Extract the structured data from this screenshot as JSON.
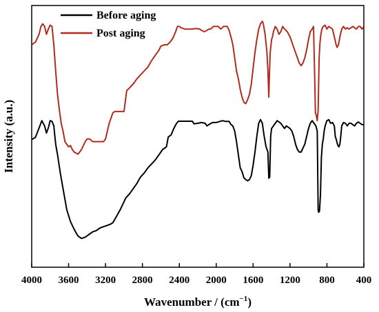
{
  "chart_data": {
    "type": "line",
    "xlabel": "Wavenumber / (cm",
    "xlabel_sup": "−1",
    "xlabel_close": ")",
    "ylabel": "Intensity (a.u.)",
    "xlim": [
      4000,
      400
    ],
    "x_reversed": true,
    "ylim": [
      0,
      100
    ],
    "xticks": [
      4000,
      3600,
      3200,
      2800,
      2400,
      2000,
      1600,
      1200,
      800,
      400
    ],
    "grid": false,
    "legend_position": "top-left",
    "series": [
      {
        "name": "Before aging",
        "color": "#000000",
        "points": [
          [
            4000,
            48.8
          ],
          [
            3960,
            49.6
          ],
          [
            3920,
            53.2
          ],
          [
            3890,
            56.0
          ],
          [
            3860,
            54.0
          ],
          [
            3840,
            51.3
          ],
          [
            3820,
            53.2
          ],
          [
            3800,
            56.0
          ],
          [
            3780,
            55.7
          ],
          [
            3760,
            54.0
          ],
          [
            3740,
            47.0
          ],
          [
            3720,
            43.0
          ],
          [
            3690,
            36.0
          ],
          [
            3660,
            30.0
          ],
          [
            3620,
            22.0
          ],
          [
            3580,
            17.5
          ],
          [
            3540,
            14.5
          ],
          [
            3500,
            12.0
          ],
          [
            3460,
            11.0
          ],
          [
            3420,
            11.5
          ],
          [
            3380,
            12.5
          ],
          [
            3340,
            13.5
          ],
          [
            3300,
            14.0
          ],
          [
            3260,
            15.0
          ],
          [
            3220,
            15.5
          ],
          [
            3180,
            16.0
          ],
          [
            3150,
            16.4
          ],
          [
            3120,
            17.0
          ],
          [
            3080,
            19.5
          ],
          [
            3040,
            22.0
          ],
          [
            3000,
            25.0
          ],
          [
            2980,
            26.5
          ],
          [
            2940,
            28.0
          ],
          [
            2900,
            30.0
          ],
          [
            2860,
            32.0
          ],
          [
            2820,
            34.5
          ],
          [
            2780,
            36.0
          ],
          [
            2740,
            38.0
          ],
          [
            2700,
            39.5
          ],
          [
            2660,
            41.0
          ],
          [
            2620,
            43.0
          ],
          [
            2580,
            45.0
          ],
          [
            2540,
            46.0
          ],
          [
            2520,
            49.8
          ],
          [
            2490,
            50.5
          ],
          [
            2460,
            53.0
          ],
          [
            2430,
            55.0
          ],
          [
            2410,
            55.8
          ],
          [
            2380,
            55.8
          ],
          [
            2340,
            55.8
          ],
          [
            2300,
            55.8
          ],
          [
            2260,
            55.8
          ],
          [
            2240,
            54.8
          ],
          [
            2200,
            55.0
          ],
          [
            2160,
            55.3
          ],
          [
            2120,
            55.0
          ],
          [
            2100,
            54.0
          ],
          [
            2080,
            54.5
          ],
          [
            2040,
            55.3
          ],
          [
            2000,
            55.3
          ],
          [
            1960,
            55.7
          ],
          [
            1930,
            56.0
          ],
          [
            1900,
            55.7
          ],
          [
            1860,
            55.7
          ],
          [
            1840,
            54.5
          ],
          [
            1820,
            54.0
          ],
          [
            1800,
            52.0
          ],
          [
            1780,
            48.0
          ],
          [
            1760,
            43.0
          ],
          [
            1740,
            38.0
          ],
          [
            1720,
            36.5
          ],
          [
            1700,
            34.2
          ],
          [
            1680,
            33.5
          ],
          [
            1660,
            33.0
          ],
          [
            1640,
            33.5
          ],
          [
            1620,
            35.0
          ],
          [
            1600,
            39.0
          ],
          [
            1580,
            44.0
          ],
          [
            1560,
            50.0
          ],
          [
            1540,
            55.0
          ],
          [
            1520,
            56.4
          ],
          [
            1500,
            55.0
          ],
          [
            1480,
            50.0
          ],
          [
            1460,
            46.0
          ],
          [
            1440,
            44.0
          ],
          [
            1430,
            34.0
          ],
          [
            1420,
            34.5
          ],
          [
            1410,
            50.0
          ],
          [
            1400,
            53.0
          ],
          [
            1380,
            54.0
          ],
          [
            1360,
            55.0
          ],
          [
            1340,
            56.0
          ],
          [
            1320,
            55.5
          ],
          [
            1300,
            55.0
          ],
          [
            1280,
            54.0
          ],
          [
            1260,
            53.0
          ],
          [
            1240,
            54.0
          ],
          [
            1200,
            53.0
          ],
          [
            1180,
            52.0
          ],
          [
            1160,
            50.0
          ],
          [
            1140,
            47.0
          ],
          [
            1120,
            45.0
          ],
          [
            1100,
            44.0
          ],
          [
            1080,
            44.0
          ],
          [
            1060,
            45.5
          ],
          [
            1040,
            47.0
          ],
          [
            1020,
            50.0
          ],
          [
            1000,
            53.0
          ],
          [
            980,
            55.0
          ],
          [
            960,
            56.0
          ],
          [
            940,
            55.0
          ],
          [
            920,
            54.0
          ],
          [
            905,
            52.0
          ],
          [
            895,
            22.0
          ],
          [
            890,
            21.0
          ],
          [
            880,
            21.5
          ],
          [
            870,
            28.0
          ],
          [
            860,
            42.0
          ],
          [
            850,
            47.0
          ],
          [
            840,
            49.0
          ],
          [
            830,
            52.0
          ],
          [
            820,
            54.0
          ],
          [
            800,
            56.0
          ],
          [
            780,
            56.4
          ],
          [
            760,
            55.0
          ],
          [
            740,
            55.3
          ],
          [
            720,
            54.0
          ],
          [
            710,
            50.0
          ],
          [
            700,
            49.0
          ],
          [
            690,
            47.5
          ],
          [
            680,
            46.5
          ],
          [
            670,
            46.0
          ],
          [
            660,
            47.0
          ],
          [
            650,
            50.0
          ],
          [
            640,
            54.0
          ],
          [
            620,
            55.3
          ],
          [
            600,
            55.0
          ],
          [
            580,
            54.0
          ],
          [
            560,
            55.0
          ],
          [
            540,
            55.0
          ],
          [
            520,
            54.5
          ],
          [
            500,
            54.0
          ],
          [
            480,
            55.0
          ],
          [
            460,
            55.5
          ],
          [
            440,
            55.0
          ],
          [
            420,
            54.5
          ],
          [
            400,
            54.5
          ]
        ]
      },
      {
        "name": "Post aging",
        "color": "#b22a1c",
        "points": [
          [
            4000,
            85.0
          ],
          [
            3980,
            85.5
          ],
          [
            3960,
            86.0
          ],
          [
            3940,
            87.5
          ],
          [
            3920,
            89.0
          ],
          [
            3900,
            92.0
          ],
          [
            3880,
            93.0
          ],
          [
            3860,
            92.0
          ],
          [
            3840,
            89.0
          ],
          [
            3820,
            91.0
          ],
          [
            3800,
            92.5
          ],
          [
            3780,
            92.0
          ],
          [
            3760,
            85.0
          ],
          [
            3740,
            75.0
          ],
          [
            3720,
            66.0
          ],
          [
            3700,
            60.0
          ],
          [
            3680,
            55.0
          ],
          [
            3660,
            52.0
          ],
          [
            3640,
            48.0
          ],
          [
            3620,
            47.0
          ],
          [
            3600,
            46.0
          ],
          [
            3580,
            46.5
          ],
          [
            3560,
            45.0
          ],
          [
            3540,
            44.0
          ],
          [
            3500,
            43.2
          ],
          [
            3480,
            44.0
          ],
          [
            3460,
            45.0
          ],
          [
            3440,
            46.5
          ],
          [
            3420,
            48.0
          ],
          [
            3400,
            49.0
          ],
          [
            3370,
            49.0
          ],
          [
            3340,
            48.0
          ],
          [
            3300,
            48.0
          ],
          [
            3260,
            48.0
          ],
          [
            3220,
            48.0
          ],
          [
            3200,
            49.0
          ],
          [
            3180,
            52.0
          ],
          [
            3160,
            55.0
          ],
          [
            3140,
            57.0
          ],
          [
            3120,
            59.0
          ],
          [
            3100,
            59.5
          ],
          [
            3060,
            59.5
          ],
          [
            3020,
            59.5
          ],
          [
            3000,
            59.5
          ],
          [
            2990,
            62.0
          ],
          [
            2970,
            67.5
          ],
          [
            2940,
            68.5
          ],
          [
            2900,
            70.0
          ],
          [
            2860,
            72.0
          ],
          [
            2820,
            73.5
          ],
          [
            2780,
            75.0
          ],
          [
            2740,
            76.5
          ],
          [
            2700,
            79.0
          ],
          [
            2660,
            81.0
          ],
          [
            2620,
            83.0
          ],
          [
            2600,
            84.5
          ],
          [
            2560,
            85.0
          ],
          [
            2530,
            85.0
          ],
          [
            2500,
            86.0
          ],
          [
            2470,
            87.5
          ],
          [
            2440,
            90.0
          ],
          [
            2420,
            92.0
          ],
          [
            2400,
            92.0
          ],
          [
            2380,
            91.5
          ],
          [
            2340,
            91.0
          ],
          [
            2300,
            91.0
          ],
          [
            2260,
            91.0
          ],
          [
            2220,
            91.2
          ],
          [
            2180,
            91.0
          ],
          [
            2160,
            90.5
          ],
          [
            2130,
            90.0
          ],
          [
            2100,
            90.5
          ],
          [
            2080,
            91.0
          ],
          [
            2060,
            91.0
          ],
          [
            2030,
            92.0
          ],
          [
            2000,
            92.0
          ],
          [
            1980,
            92.0
          ],
          [
            1950,
            91.0
          ],
          [
            1920,
            92.0
          ],
          [
            1880,
            92.0
          ],
          [
            1860,
            90.5
          ],
          [
            1840,
            88.0
          ],
          [
            1820,
            85.0
          ],
          [
            1800,
            80.0
          ],
          [
            1780,
            75.0
          ],
          [
            1760,
            72.0
          ],
          [
            1740,
            68.0
          ],
          [
            1720,
            65.0
          ],
          [
            1700,
            63.0
          ],
          [
            1680,
            62.5
          ],
          [
            1660,
            64.0
          ],
          [
            1640,
            66.0
          ],
          [
            1620,
            70.0
          ],
          [
            1600,
            76.0
          ],
          [
            1580,
            82.0
          ],
          [
            1560,
            87.0
          ],
          [
            1540,
            91.0
          ],
          [
            1520,
            93.0
          ],
          [
            1500,
            94.0
          ],
          [
            1490,
            93.0
          ],
          [
            1470,
            89.0
          ],
          [
            1450,
            82.0
          ],
          [
            1440,
            75.0
          ],
          [
            1430,
            65.0
          ],
          [
            1425,
            72.0
          ],
          [
            1415,
            82.0
          ],
          [
            1400,
            87.0
          ],
          [
            1390,
            88.0
          ],
          [
            1380,
            90.0
          ],
          [
            1360,
            92.0
          ],
          [
            1340,
            91.0
          ],
          [
            1320,
            89.0
          ],
          [
            1300,
            90.0
          ],
          [
            1280,
            92.0
          ],
          [
            1260,
            91.0
          ],
          [
            1230,
            90.0
          ],
          [
            1200,
            88.0
          ],
          [
            1180,
            86.0
          ],
          [
            1160,
            84.0
          ],
          [
            1140,
            82.0
          ],
          [
            1120,
            80.0
          ],
          [
            1100,
            78.0
          ],
          [
            1080,
            77.0
          ],
          [
            1060,
            78.0
          ],
          [
            1040,
            80.0
          ],
          [
            1020,
            83.0
          ],
          [
            1000,
            87.0
          ],
          [
            980,
            90.0
          ],
          [
            960,
            91.0
          ],
          [
            945,
            92.0
          ],
          [
            935,
            76.0
          ],
          [
            925,
            59.0
          ],
          [
            915,
            58.0
          ],
          [
            905,
            56.0
          ],
          [
            895,
            60.0
          ],
          [
            885,
            80.0
          ],
          [
            875,
            86.0
          ],
          [
            865,
            89.0
          ],
          [
            855,
            91.0
          ],
          [
            840,
            92.0
          ],
          [
            820,
            92.5
          ],
          [
            800,
            91.0
          ],
          [
            780,
            92.0
          ],
          [
            760,
            91.5
          ],
          [
            740,
            91.0
          ],
          [
            720,
            88.0
          ],
          [
            700,
            85.0
          ],
          [
            690,
            84.0
          ],
          [
            675,
            85.0
          ],
          [
            660,
            88.0
          ],
          [
            640,
            91.0
          ],
          [
            620,
            92.0
          ],
          [
            600,
            91.0
          ],
          [
            580,
            91.5
          ],
          [
            560,
            91.0
          ],
          [
            540,
            91.5
          ],
          [
            520,
            92.0
          ],
          [
            500,
            91.5
          ],
          [
            480,
            91.0
          ],
          [
            460,
            92.0
          ],
          [
            440,
            92.0
          ],
          [
            420,
            91.0
          ],
          [
            400,
            92.0
          ]
        ]
      }
    ]
  }
}
